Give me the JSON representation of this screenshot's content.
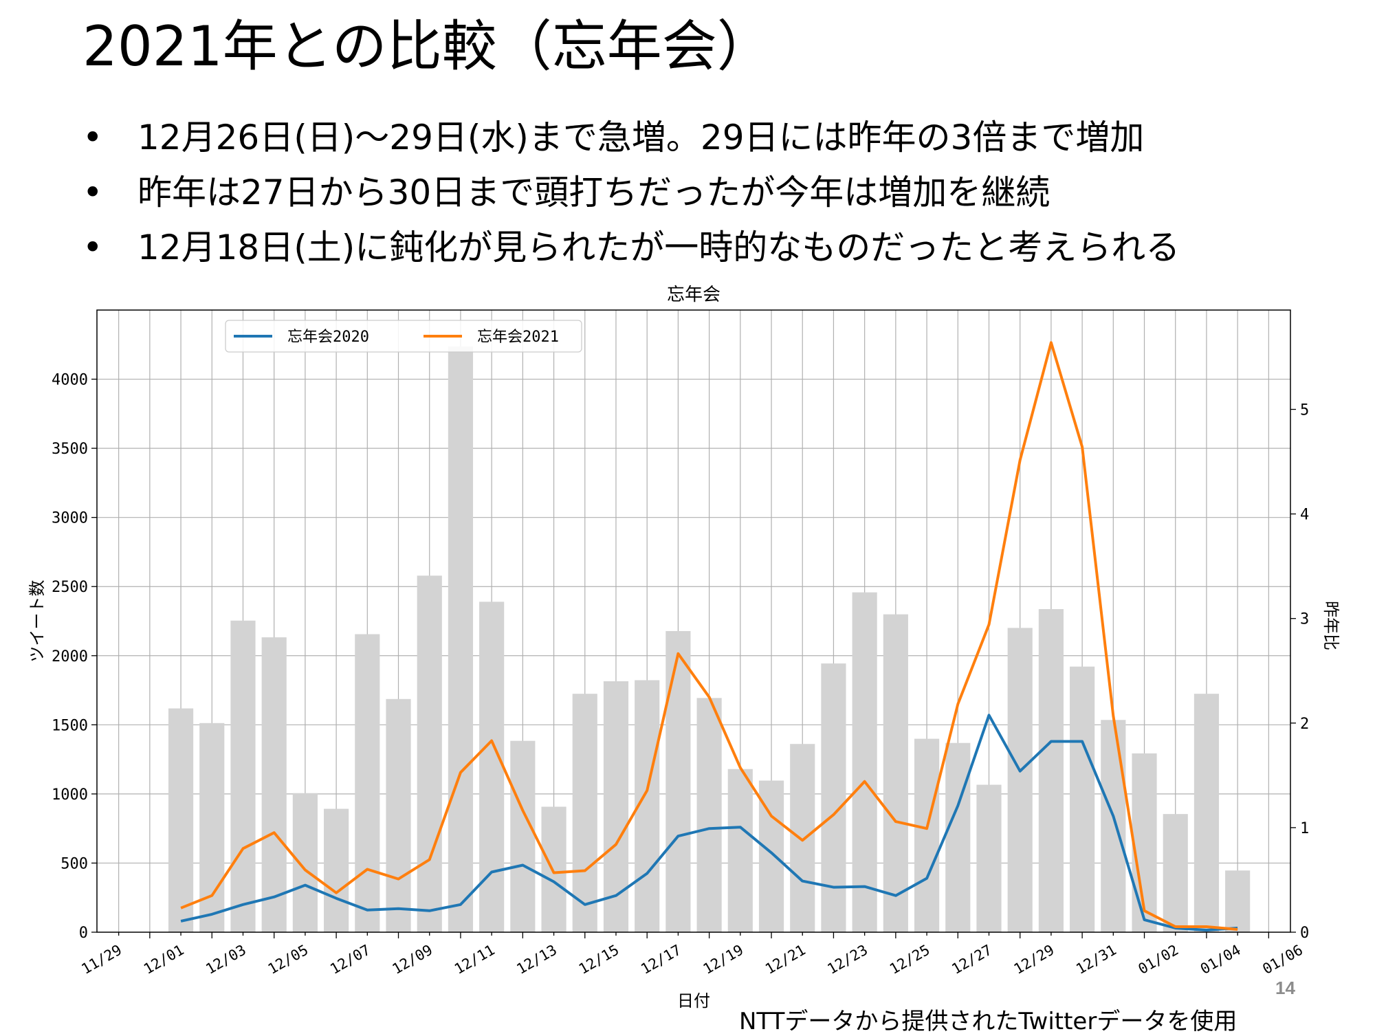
{
  "slide": {
    "title": "2021年との比較（忘年会）",
    "bullet_symbol": "•",
    "bullets": [
      "12月26日(日)～29日(水)まで急増。29日には昨年の3倍まで増加",
      "昨年は27日から30日まで頭打ちだったが今年は増加を継続",
      "12月18日(土)に鈍化が見られたが一時的なものだったと考えられる"
    ],
    "page_number": "14",
    "credit": "NTTデータから提供されたTwitterデータを使用"
  },
  "colors": {
    "series_2020": "#1f77b4",
    "series_2021": "#ff7f0e",
    "ratio_bars": "#d3d3d3",
    "grid": "#b0b0b0"
  },
  "chart_data": {
    "type": "line",
    "title": "忘年会",
    "xlabel": "日付",
    "ylabel": "ツイート数",
    "y2label": "昨年比",
    "ylim": [
      0,
      4500
    ],
    "y2lim": [
      0,
      5.95
    ],
    "xlim": [
      -2.7,
      35.7
    ],
    "grid": true,
    "legend_position": "top-left",
    "x_tick_labels": [
      "11/29",
      "12/01",
      "12/03",
      "12/05",
      "12/07",
      "12/09",
      "12/11",
      "12/13",
      "12/15",
      "12/17",
      "12/19",
      "12/21",
      "12/23",
      "12/25",
      "12/27",
      "12/29",
      "12/31",
      "01/02",
      "01/04",
      "01/06"
    ],
    "y_ticks": [
      0,
      500,
      1000,
      1500,
      2000,
      2500,
      3000,
      3500,
      4000
    ],
    "y2_ticks": [
      0,
      1,
      2,
      3,
      4,
      5
    ],
    "dates": [
      "12/01",
      "12/02",
      "12/03",
      "12/04",
      "12/05",
      "12/06",
      "12/07",
      "12/08",
      "12/09",
      "12/10",
      "12/11",
      "12/12",
      "12/13",
      "12/14",
      "12/15",
      "12/16",
      "12/17",
      "12/18",
      "12/19",
      "12/20",
      "12/21",
      "12/22",
      "12/23",
      "12/24",
      "12/25",
      "12/26",
      "12/27",
      "12/28",
      "12/29",
      "12/30",
      "12/31",
      "01/01",
      "01/02",
      "01/03",
      "01/04"
    ],
    "series": [
      {
        "name": "忘年会2020",
        "axis": "left",
        "kind": "line",
        "values": [
          80,
          130,
          200,
          255,
          340,
          245,
          160,
          170,
          155,
          200,
          435,
          485,
          365,
          200,
          265,
          425,
          695,
          750,
          760,
          575,
          370,
          325,
          330,
          265,
          390,
          915,
          1570,
          1165,
          1380,
          1380,
          840,
          90,
          30,
          15,
          30
        ]
      },
      {
        "name": "忘年会2021",
        "axis": "left",
        "kind": "line",
        "values": [
          175,
          265,
          605,
          720,
          450,
          285,
          455,
          385,
          525,
          1155,
          1385,
          880,
          430,
          445,
          635,
          1025,
          2015,
          1700,
          1190,
          840,
          665,
          850,
          1090,
          800,
          750,
          1650,
          2225,
          3415,
          4265,
          3510,
          1565,
          155,
          40,
          40,
          20
        ]
      },
      {
        "name": "",
        "axis": "right",
        "kind": "bar",
        "values": [
          2.14,
          2.0,
          2.98,
          2.82,
          1.33,
          1.18,
          2.85,
          2.23,
          3.41,
          5.6,
          3.16,
          1.83,
          1.2,
          2.28,
          2.4,
          2.41,
          2.88,
          2.24,
          1.56,
          1.45,
          1.8,
          2.57,
          3.25,
          3.04,
          1.85,
          1.81,
          1.41,
          2.91,
          3.09,
          2.54,
          2.03,
          1.71,
          1.13,
          2.28,
          0.59
        ]
      }
    ]
  }
}
